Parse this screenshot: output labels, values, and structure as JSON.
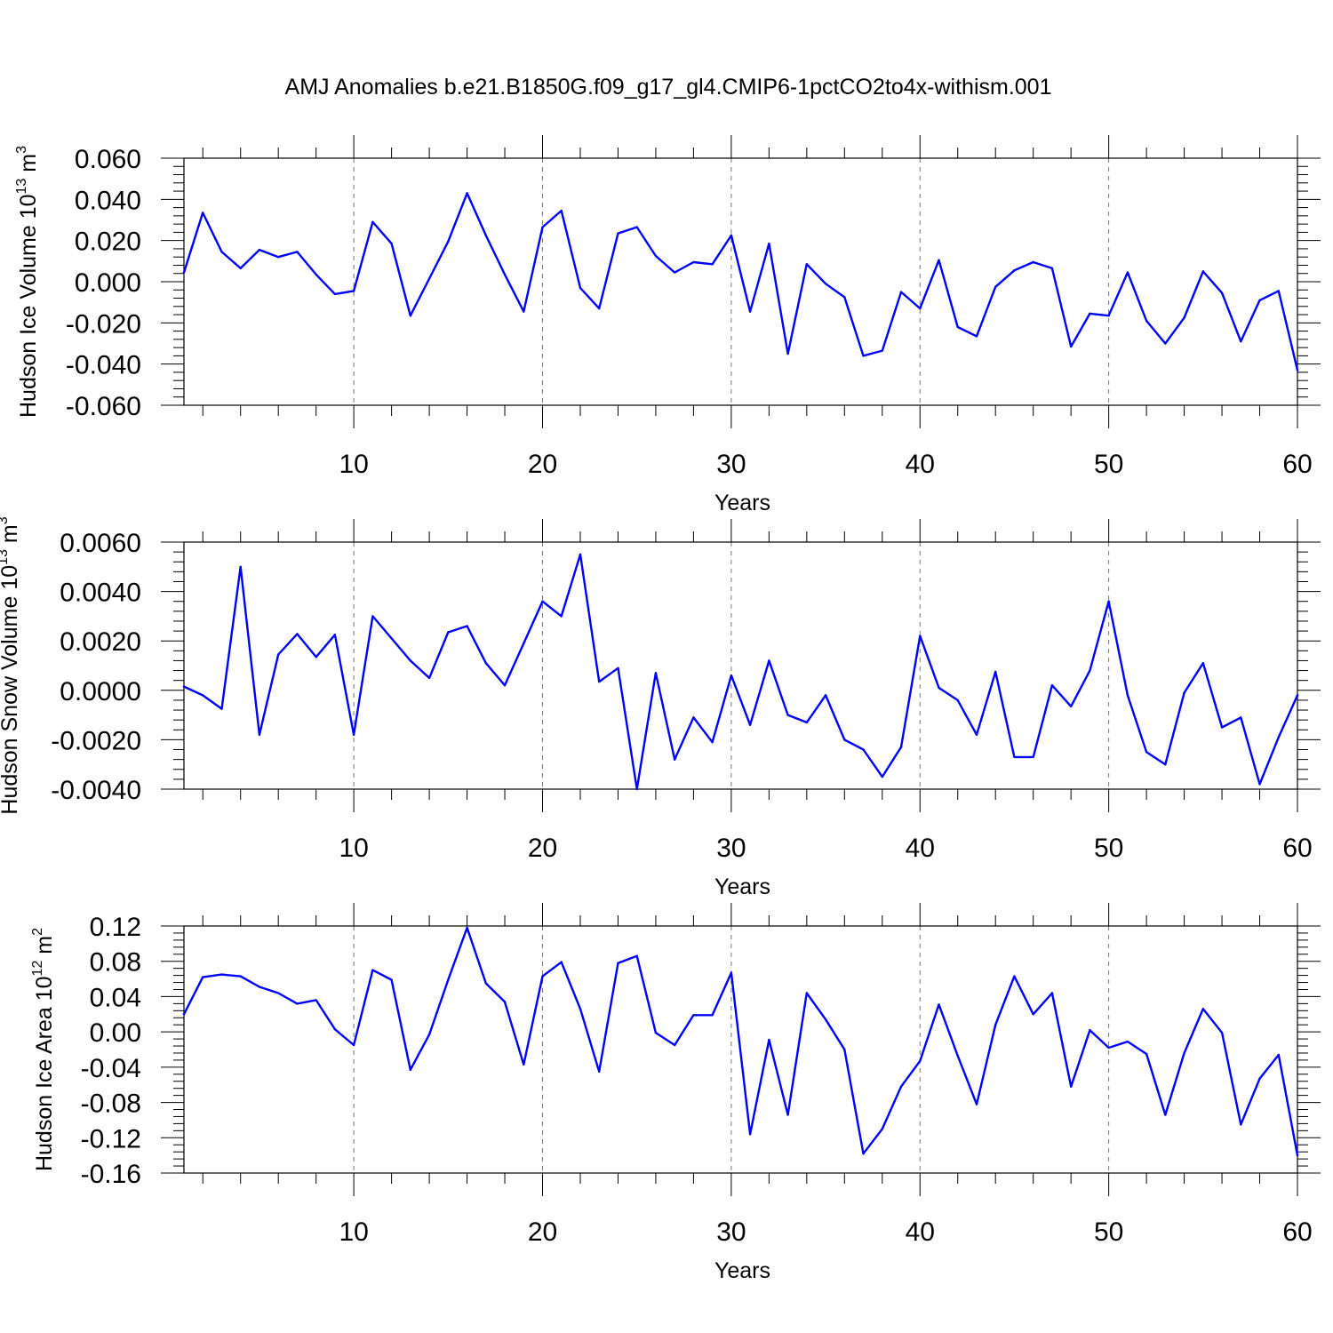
{
  "title": "AMJ Anomalies b.e21.B1850G.f09_g17_gl4.CMIP6-1pctCO2to4x-withism.001",
  "colors": {
    "line": "#0000ff",
    "axis": "#000000",
    "grid": "#777777",
    "background": "#ffffff"
  },
  "chart_data": [
    {
      "type": "line",
      "ylabel": {
        "main": "Hudson Ice Volume 10",
        "sup": "13",
        "unit": "m",
        "unit_sup": "3"
      },
      "xlabel": "Years",
      "xlim": [
        1,
        60
      ],
      "ylim": [
        -0.06,
        0.06
      ],
      "x_ticks": [
        10,
        20,
        30,
        40,
        50,
        60
      ],
      "y_ticks": [
        -0.06,
        -0.04,
        -0.02,
        0.0,
        0.02,
        0.04,
        0.06
      ],
      "y_tick_labels": [
        "-0.060",
        "-0.040",
        "-0.020",
        "0.000",
        "0.020",
        "0.040",
        "0.060"
      ],
      "grid": "vertical dashed at major x ticks",
      "series": [
        {
          "x": [
            1,
            2,
            3,
            4,
            5,
            6,
            7,
            8,
            9,
            10,
            11,
            12,
            13,
            14,
            15,
            16,
            17,
            18,
            19,
            20,
            21,
            22,
            23,
            24,
            25,
            26,
            27,
            28,
            29,
            30,
            31,
            32,
            33,
            34,
            35,
            36,
            37,
            38,
            39,
            40,
            41,
            42,
            43,
            44,
            45,
            46,
            47,
            48,
            49,
            50,
            51,
            52,
            53,
            54,
            55,
            56,
            57,
            58,
            59,
            60
          ],
          "values": [
            0.0045,
            0.0335,
            0.0145,
            0.0065,
            0.0155,
            0.012,
            0.0145,
            0.0035,
            -0.006,
            -0.0045,
            0.029,
            0.0185,
            -0.0165,
            0.0015,
            0.0195,
            0.043,
            0.0225,
            0.0035,
            -0.0145,
            0.0265,
            0.0345,
            -0.003,
            -0.013,
            0.0235,
            0.0265,
            0.0125,
            0.0045,
            0.0095,
            0.0085,
            0.0225,
            -0.0145,
            0.0185,
            -0.035,
            0.0085,
            -0.001,
            -0.0075,
            -0.036,
            -0.0335,
            -0.005,
            -0.013,
            0.0105,
            -0.022,
            -0.0265,
            -0.0025,
            0.0055,
            0.0095,
            0.0065,
            -0.0315,
            -0.0155,
            -0.0165,
            0.0045,
            -0.019,
            -0.03,
            -0.0175,
            0.005,
            -0.0055,
            -0.029,
            -0.009,
            -0.0045,
            -0.043
          ]
        }
      ]
    },
    {
      "type": "line",
      "ylabel": {
        "main": "Hudson Snow Volume 10",
        "sup": "13",
        "unit": "m",
        "unit_sup": "3"
      },
      "xlabel": "Years",
      "xlim": [
        1,
        60
      ],
      "ylim": [
        -0.004,
        0.006
      ],
      "x_ticks": [
        10,
        20,
        30,
        40,
        50,
        60
      ],
      "y_ticks": [
        -0.004,
        -0.002,
        0.0,
        0.002,
        0.004,
        0.006
      ],
      "y_tick_labels": [
        "-0.0040",
        "-0.0020",
        "0.0000",
        "0.0020",
        "0.0040",
        "0.0060"
      ],
      "grid": "vertical dashed at major x ticks",
      "series": [
        {
          "x": [
            1,
            2,
            3,
            4,
            5,
            6,
            7,
            8,
            9,
            10,
            11,
            12,
            13,
            14,
            15,
            16,
            17,
            18,
            19,
            20,
            21,
            22,
            23,
            24,
            25,
            26,
            27,
            28,
            29,
            30,
            31,
            32,
            33,
            34,
            35,
            36,
            37,
            38,
            39,
            40,
            41,
            42,
            43,
            44,
            45,
            46,
            47,
            48,
            49,
            50,
            51,
            52,
            53,
            54,
            55,
            56,
            57,
            58,
            59,
            60
          ],
          "values": [
            0.00015,
            -0.0002,
            -0.00075,
            0.005,
            -0.0018,
            0.00145,
            0.00228,
            0.00135,
            0.00225,
            -0.0018,
            0.003,
            0.0021,
            0.0012,
            0.0005,
            0.00235,
            0.0026,
            0.0011,
            0.0002,
            0.0019,
            0.0036,
            0.003,
            0.0055,
            0.00035,
            0.0009,
            -0.004,
            0.0007,
            -0.0028,
            -0.0011,
            -0.0021,
            0.0006,
            -0.0014,
            0.0012,
            -0.001,
            -0.0013,
            -0.0002,
            -0.002,
            -0.0024,
            -0.0035,
            -0.0023,
            0.0022,
            0.0001,
            -0.0004,
            -0.0018,
            0.00075,
            -0.0027,
            -0.0027,
            0.0002,
            -0.00065,
            0.0008,
            0.0036,
            -0.0002,
            -0.0025,
            -0.003,
            -0.0001,
            0.0011,
            -0.0015,
            -0.0011,
            -0.0038,
            -0.0019,
            -0.0002
          ]
        }
      ]
    },
    {
      "type": "line",
      "ylabel": {
        "main": "Hudson Ice Area 10",
        "sup": "12",
        "unit": "m",
        "unit_sup": "2"
      },
      "xlabel": "Years",
      "xlim": [
        1,
        60
      ],
      "ylim": [
        -0.16,
        0.12
      ],
      "x_ticks": [
        10,
        20,
        30,
        40,
        50,
        60
      ],
      "y_ticks": [
        -0.16,
        -0.12,
        -0.08,
        -0.04,
        0.0,
        0.04,
        0.08,
        0.12
      ],
      "y_tick_labels": [
        "-0.16",
        "-0.12",
        "-0.08",
        "-0.04",
        "0.00",
        "0.04",
        "0.08",
        "0.12"
      ],
      "grid": "vertical dashed at major x ticks",
      "series": [
        {
          "x": [
            1,
            2,
            3,
            4,
            5,
            6,
            7,
            8,
            9,
            10,
            11,
            12,
            13,
            14,
            15,
            16,
            17,
            18,
            19,
            20,
            21,
            22,
            23,
            24,
            25,
            26,
            27,
            28,
            29,
            30,
            31,
            32,
            33,
            34,
            35,
            36,
            37,
            38,
            39,
            40,
            41,
            42,
            43,
            44,
            45,
            46,
            47,
            48,
            49,
            50,
            51,
            52,
            53,
            54,
            55,
            56,
            57,
            58,
            59,
            60
          ],
          "values": [
            0.02,
            0.062,
            0.065,
            0.063,
            0.051,
            0.044,
            0.032,
            0.036,
            0.003,
            -0.015,
            0.07,
            0.059,
            -0.043,
            -0.003,
            0.059,
            0.118,
            0.055,
            0.034,
            -0.037,
            0.063,
            0.079,
            0.026,
            -0.045,
            0.078,
            0.086,
            -0.001,
            -0.015,
            0.019,
            0.019,
            0.067,
            -0.116,
            -0.009,
            -0.094,
            0.044,
            0.014,
            -0.02,
            -0.138,
            -0.11,
            -0.062,
            -0.033,
            0.031,
            -0.027,
            -0.082,
            0.008,
            0.063,
            0.02,
            0.044,
            -0.062,
            0.002,
            -0.018,
            -0.011,
            -0.025,
            -0.094,
            -0.024,
            0.026,
            -0.001,
            -0.105,
            -0.053,
            -0.026,
            -0.14
          ]
        }
      ]
    }
  ]
}
